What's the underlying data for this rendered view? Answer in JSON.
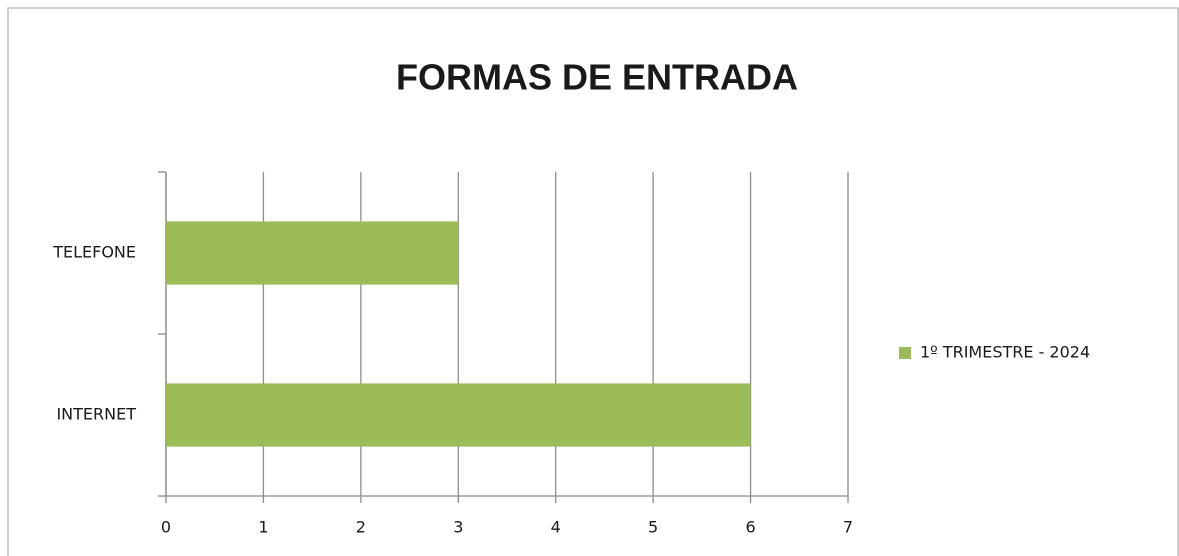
{
  "chart_data": {
    "type": "bar",
    "orientation": "horizontal",
    "title": "FORMAS DE ENTRADA",
    "categories": [
      "TELEFONE",
      "INTERNET"
    ],
    "series": [
      {
        "name": "1º TRIMESTRE - 2024",
        "color": "#9bbb59",
        "values": [
          3,
          6
        ]
      }
    ],
    "xlim": [
      0,
      7
    ],
    "xticks": [
      0,
      1,
      2,
      3,
      4,
      5,
      6,
      7
    ],
    "grid": true,
    "legend": "right"
  }
}
